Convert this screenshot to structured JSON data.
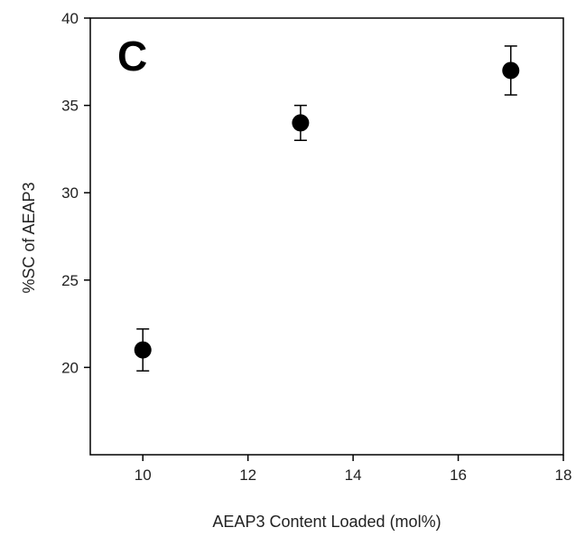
{
  "chart_data": {
    "type": "scatter",
    "panel_label": "C",
    "xlabel": "AEAP3 Content Loaded (mol%)",
    "ylabel": "%SC of AEAP3",
    "xlim": [
      9,
      18
    ],
    "ylim": [
      15,
      40
    ],
    "xticks": [
      10,
      12,
      14,
      16,
      18
    ],
    "yticks": [
      20,
      25,
      30,
      35,
      40
    ],
    "grid": false,
    "marker_color": "#000000",
    "series": [
      {
        "x": [
          10,
          13,
          17
        ],
        "y": [
          21.0,
          34.0,
          37.0
        ],
        "error": [
          1.2,
          1.0,
          1.4
        ]
      }
    ]
  }
}
